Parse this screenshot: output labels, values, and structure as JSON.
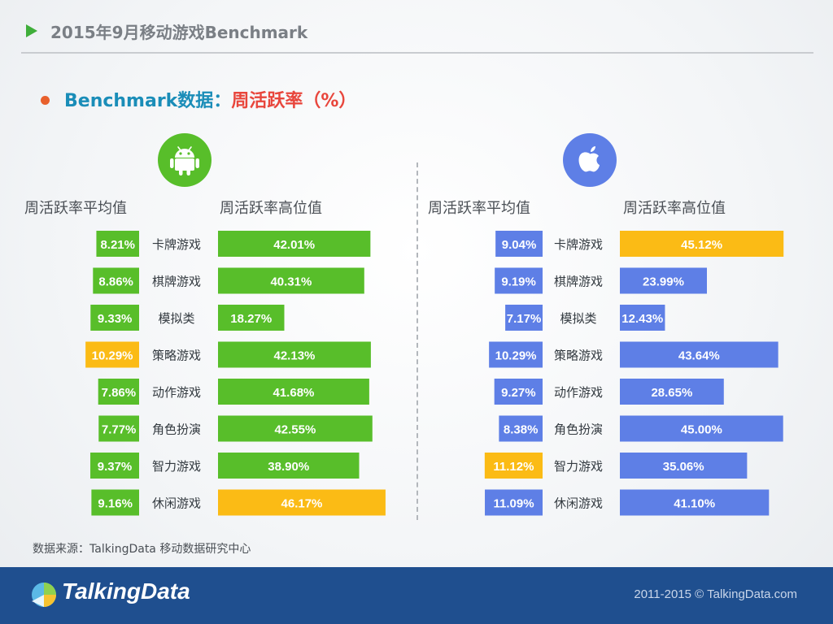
{
  "header": {
    "title": "2015年9月移动游戏Benchmark"
  },
  "subtitle": {
    "part1": "Benchmark数据：",
    "part2": "周活跃率（%）"
  },
  "colors": {
    "green": "#58be2a",
    "yellow": "#fbbb15",
    "blue": "#5e7fe6",
    "footer": "#1f4f8f"
  },
  "panels": {
    "android": {
      "icon": "android-icon",
      "avg_header": "周活跃率平均值",
      "high_header": "周活跃率高位值"
    },
    "ios": {
      "icon": "apple-icon",
      "avg_header": "周活跃率平均值",
      "high_header": "周活跃率高位值"
    }
  },
  "chart_data": [
    {
      "type": "bar",
      "categories": [
        "卡牌游戏",
        "棋牌游戏",
        "模拟类",
        "策略游戏",
        "动作游戏",
        "角色扮演",
        "智力游戏",
        "休闲游戏"
      ],
      "series": [
        {
          "name": "周活跃率平均值",
          "values": [
            8.21,
            8.86,
            9.33,
            10.29,
            7.86,
            7.77,
            9.37,
            9.16
          ],
          "labels": [
            "8.21%",
            "8.86%",
            "9.33%",
            "10.29%",
            "7.86%",
            "7.77%",
            "9.37%",
            "9.16%"
          ],
          "highlight_index": 3
        },
        {
          "name": "周活跃率高位值",
          "values": [
            42.01,
            40.31,
            18.27,
            42.13,
            41.68,
            42.55,
            38.9,
            46.17
          ],
          "labels": [
            "42.01%",
            "40.31%",
            "18.27%",
            "42.13%",
            "41.68%",
            "42.55%",
            "38.90%",
            "46.17%"
          ],
          "highlight_index": 7
        }
      ]
    },
    {
      "type": "bar",
      "categories": [
        "卡牌游戏",
        "棋牌游戏",
        "模拟类",
        "策略游戏",
        "动作游戏",
        "角色扮演",
        "智力游戏",
        "休闲游戏"
      ],
      "series": [
        {
          "name": "周活跃率平均值",
          "values": [
            9.04,
            9.19,
            7.17,
            10.29,
            9.27,
            8.38,
            11.12,
            11.09
          ],
          "labels": [
            "9.04%",
            "9.19%",
            "7.17%",
            "10.29%",
            "9.27%",
            "8.38%",
            "11.12%",
            "11.09%"
          ],
          "highlight_index": 6
        },
        {
          "name": "周活跃率高位值",
          "values": [
            45.12,
            23.99,
            12.43,
            43.64,
            28.65,
            45.0,
            35.06,
            41.1
          ],
          "labels": [
            "45.12%",
            "23.99%",
            "12.43%",
            "43.64%",
            "28.65%",
            "45.00%",
            "35.06%",
            "41.10%"
          ],
          "highlight_index": 0
        }
      ]
    }
  ],
  "source": "数据来源：TalkingData 移动数据研究中心",
  "footer": {
    "logo_text": "TalkingData",
    "copyright": "2011-2015 © TalkingData.com"
  }
}
